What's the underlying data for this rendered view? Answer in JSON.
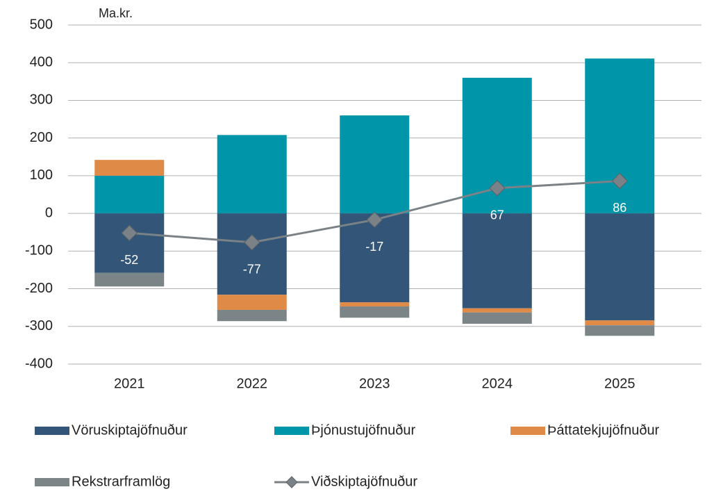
{
  "chart_data": {
    "type": "bar",
    "stacked": true,
    "y_label": "Ma.kr.",
    "categories": [
      "2021",
      "2022",
      "2023",
      "2024",
      "2025"
    ],
    "series": [
      {
        "name": "Vöruskiptajöfnuður",
        "color": "#325578",
        "values": [
          -158,
          -216,
          -236,
          -252,
          -284
        ]
      },
      {
        "name": "Þjónustujöfnuður",
        "color": "#0095a8",
        "values": [
          100,
          208,
          260,
          360,
          411
        ]
      },
      {
        "name": "Þáttatekjujöfnuður",
        "color": "#e08a48",
        "values": [
          42,
          -40,
          -11,
          -11,
          -13
        ]
      },
      {
        "name": "Rekstrarframlög",
        "color": "#7b8487",
        "values": [
          -36,
          -30,
          -30,
          -30,
          -28
        ]
      },
      {
        "name": "Viðskiptajöfnuður",
        "color": "#7a8287",
        "type": "line",
        "marker": "diamond",
        "values": [
          -52,
          -77,
          -17,
          67,
          86
        ]
      }
    ],
    "ylim": [
      -400,
      500
    ],
    "yticks": [
      -400,
      -300,
      -200,
      -100,
      0,
      100,
      200,
      300,
      400,
      500
    ],
    "grid": true
  }
}
